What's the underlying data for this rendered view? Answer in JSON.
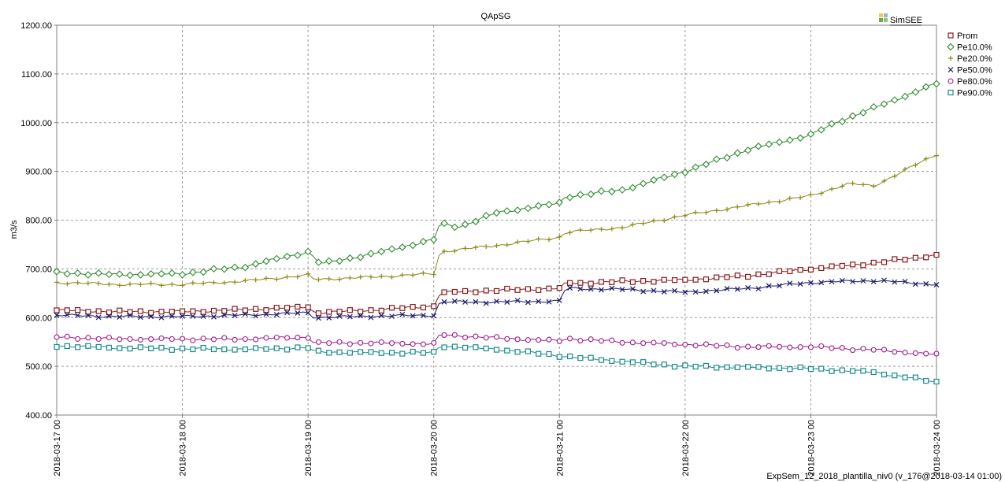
{
  "chart_data": {
    "type": "line",
    "title": "QApSG",
    "ylabel": "m3/s",
    "xlabel": "",
    "ylim": [
      400,
      1200
    ],
    "yticks": [
      "1200.00",
      "1100.00",
      "1000.00",
      "900.00",
      "800.00",
      "700.00",
      "600.00",
      "500.00",
      "400.00"
    ],
    "ytick_values": [
      1200,
      1100,
      1000,
      900,
      800,
      700,
      600,
      500,
      400
    ],
    "xticks": [
      "2018-03-17 00",
      "2018-03-18 00",
      "2018-03-19 00",
      "2018-03-20 00",
      "2018-03-21 00",
      "2018-03-22 00",
      "2018-03-23 00",
      "2018-03-24 00"
    ],
    "grid": true,
    "legend_position": "top-right",
    "series": [
      {
        "name": "Prom",
        "color": "#8b1a1a",
        "marker": "square",
        "points": [
          [
            0,
            615
          ],
          [
            0.5,
            612
          ],
          [
            1,
            612
          ],
          [
            1.5,
            616
          ],
          [
            2,
            622
          ],
          [
            2.05,
            610
          ],
          [
            2.5,
            615
          ],
          [
            3,
            624
          ],
          [
            3.05,
            651
          ],
          [
            3.5,
            656
          ],
          [
            4,
            660
          ],
          [
            4.05,
            670
          ],
          [
            4.5,
            674
          ],
          [
            5,
            677
          ],
          [
            5.5,
            686
          ],
          [
            6,
            700
          ],
          [
            6.5,
            712
          ],
          [
            7,
            728
          ]
        ]
      },
      {
        "name": "Pe10.0%",
        "color": "#2e8b2e",
        "marker": "diamond",
        "points": [
          [
            0,
            692
          ],
          [
            0.5,
            688
          ],
          [
            1,
            690
          ],
          [
            1.5,
            705
          ],
          [
            2,
            735
          ],
          [
            2.1,
            710
          ],
          [
            2.5,
            730
          ],
          [
            3,
            760
          ],
          [
            3.05,
            793
          ],
          [
            3.2,
            786
          ],
          [
            3.5,
            815
          ],
          [
            4,
            835
          ],
          [
            4.05,
            848
          ],
          [
            4.5,
            862
          ],
          [
            5,
            900
          ],
          [
            5.5,
            945
          ],
          [
            6,
            975
          ],
          [
            6.2,
            1000
          ],
          [
            6.5,
            1030
          ],
          [
            7,
            1080
          ]
        ]
      },
      {
        "name": "Pe20.0%",
        "color": "#8b8b1a",
        "marker": "plus",
        "points": [
          [
            0,
            672
          ],
          [
            0.5,
            668
          ],
          [
            1,
            668
          ],
          [
            1.5,
            675
          ],
          [
            2,
            687
          ],
          [
            2.05,
            678
          ],
          [
            2.5,
            683
          ],
          [
            3,
            690
          ],
          [
            3.05,
            735
          ],
          [
            3.5,
            748
          ],
          [
            4,
            765
          ],
          [
            4.05,
            775
          ],
          [
            4.5,
            785
          ],
          [
            5,
            810
          ],
          [
            5.5,
            830
          ],
          [
            6,
            850
          ],
          [
            6.3,
            875
          ],
          [
            6.5,
            870
          ],
          [
            7,
            935
          ]
        ]
      },
      {
        "name": "Pe50.0%",
        "color": "#1a1a6b",
        "marker": "cross",
        "points": [
          [
            0,
            605
          ],
          [
            0.5,
            602
          ],
          [
            1,
            602
          ],
          [
            1.5,
            605
          ],
          [
            2,
            610
          ],
          [
            2.05,
            600
          ],
          [
            2.5,
            603
          ],
          [
            3,
            605
          ],
          [
            3.05,
            632
          ],
          [
            3.5,
            632
          ],
          [
            4,
            634
          ],
          [
            4.05,
            660
          ],
          [
            4.5,
            658
          ],
          [
            5,
            652
          ],
          [
            5.5,
            660
          ],
          [
            6,
            672
          ],
          [
            6.5,
            676
          ],
          [
            7,
            668
          ]
        ]
      },
      {
        "name": "Pe80.0%",
        "color": "#a01a8b",
        "marker": "circle",
        "points": [
          [
            0,
            560
          ],
          [
            0.5,
            556
          ],
          [
            1,
            556
          ],
          [
            1.5,
            556
          ],
          [
            2,
            560
          ],
          [
            2.05,
            548
          ],
          [
            2.5,
            548
          ],
          [
            3,
            546
          ],
          [
            3.05,
            565
          ],
          [
            3.5,
            558
          ],
          [
            4,
            552
          ],
          [
            4.05,
            557
          ],
          [
            4.5,
            550
          ],
          [
            5,
            545
          ],
          [
            5.5,
            540
          ],
          [
            6,
            540
          ],
          [
            6.5,
            534
          ],
          [
            7,
            524
          ]
        ]
      },
      {
        "name": "Pe90.0%",
        "color": "#1a8b8b",
        "marker": "square",
        "points": [
          [
            0,
            542
          ],
          [
            0.5,
            538
          ],
          [
            1,
            536
          ],
          [
            1.5,
            535
          ],
          [
            2,
            538
          ],
          [
            2.05,
            530
          ],
          [
            2.5,
            528
          ],
          [
            3,
            528
          ],
          [
            3.05,
            542
          ],
          [
            3.5,
            535
          ],
          [
            4,
            522
          ],
          [
            4.05,
            520
          ],
          [
            4.5,
            510
          ],
          [
            5,
            500
          ],
          [
            5.5,
            498
          ],
          [
            6,
            495
          ],
          [
            6.5,
            488
          ],
          [
            7,
            468
          ]
        ]
      }
    ]
  },
  "brand": {
    "label": "SimSEE"
  },
  "footer": {
    "label": "ExpSem_12_2018_plantilla_niv0 (v_176@2018-03-14 01:00)"
  }
}
